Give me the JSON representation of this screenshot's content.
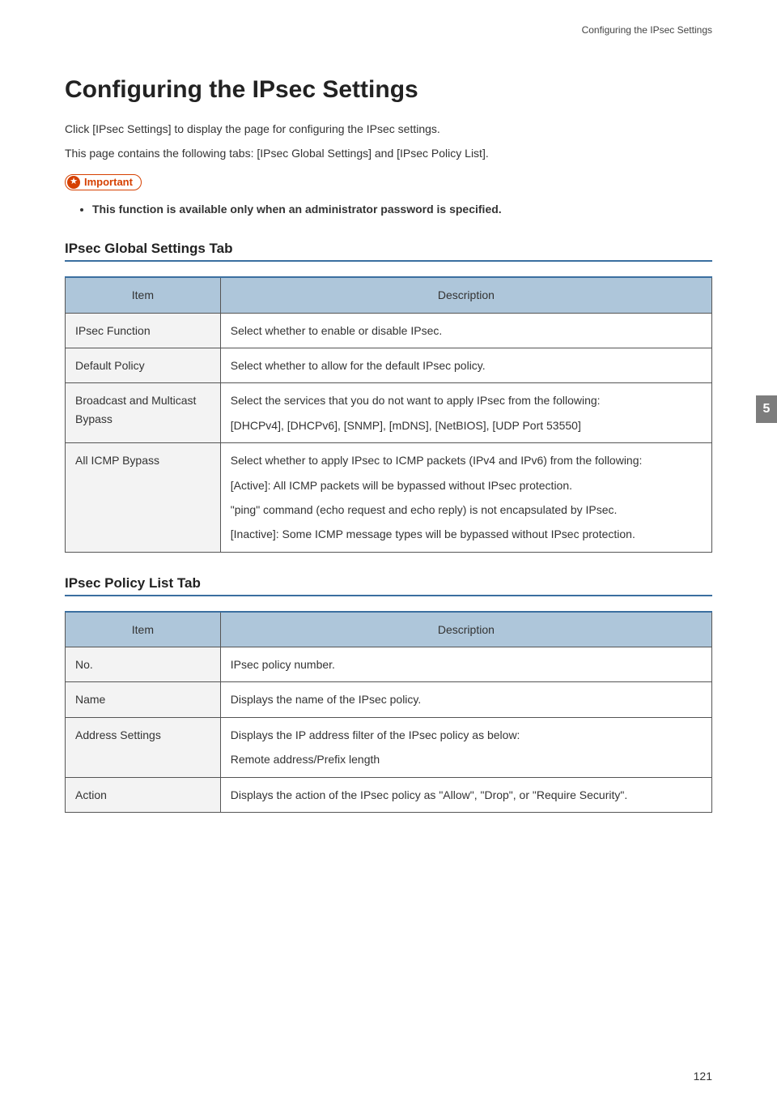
{
  "colors": {
    "rule_blue": "#3b6fa0",
    "header_bg": "#aec6da",
    "item_bg": "#f3f3f3",
    "border": "#555555",
    "important": "#d64000",
    "side_tab_bg": "#7d7d7d",
    "text": "#333333"
  },
  "running_header": "Configuring the IPsec Settings",
  "page_title": "Configuring the IPsec Settings",
  "intro_p1": "Click [IPsec Settings] to display the page for configuring the IPsec settings.",
  "intro_p2": "This page contains the following tabs: [IPsec Global Settings] and [IPsec Policy List].",
  "important_label": "Important",
  "important_bullet": "This function is available only when an administrator password is specified.",
  "section1_heading": "IPsec Global Settings Tab",
  "table_headers": {
    "item": "Item",
    "description": "Description"
  },
  "table1": {
    "col_widths_pct": [
      24,
      76
    ],
    "header_bg": "#aec6da",
    "item_bg": "#f3f3f3",
    "border_color": "#555555",
    "rows": [
      {
        "item": "IPsec Function",
        "desc": [
          "Select whether to enable or disable IPsec."
        ]
      },
      {
        "item": "Default Policy",
        "desc": [
          "Select whether to allow for the default IPsec policy."
        ]
      },
      {
        "item": "Broadcast and Multicast Bypass",
        "desc": [
          "Select the services that you do not want to apply IPsec from the following:",
          "[DHCPv4], [DHCPv6], [SNMP], [mDNS], [NetBIOS], [UDP Port 53550]"
        ]
      },
      {
        "item": "All ICMP Bypass",
        "desc": [
          "Select whether to apply IPsec to ICMP packets (IPv4 and IPv6) from the following:",
          "[Active]: All ICMP packets will be bypassed without IPsec protection.",
          "\"ping\" command (echo request and echo reply) is not encapsulated by IPsec.",
          "[Inactive]: Some ICMP message types will be bypassed without IPsec protection."
        ]
      }
    ]
  },
  "section2_heading": "IPsec Policy List Tab",
  "table2": {
    "col_widths_pct": [
      24,
      76
    ],
    "header_bg": "#aec6da",
    "item_bg": "#f3f3f3",
    "border_color": "#555555",
    "rows": [
      {
        "item": "No.",
        "desc": [
          "IPsec policy number."
        ]
      },
      {
        "item": "Name",
        "desc": [
          "Displays the name of the IPsec policy."
        ]
      },
      {
        "item": "Address Settings",
        "desc": [
          "Displays the IP address filter of the IPsec policy as below:",
          "Remote address/Prefix length"
        ]
      },
      {
        "item": "Action",
        "desc": [
          "Displays the action of the IPsec policy as \"Allow\", \"Drop\", or \"Require Security\"."
        ]
      }
    ]
  },
  "side_tab": "5",
  "page_number": "121"
}
